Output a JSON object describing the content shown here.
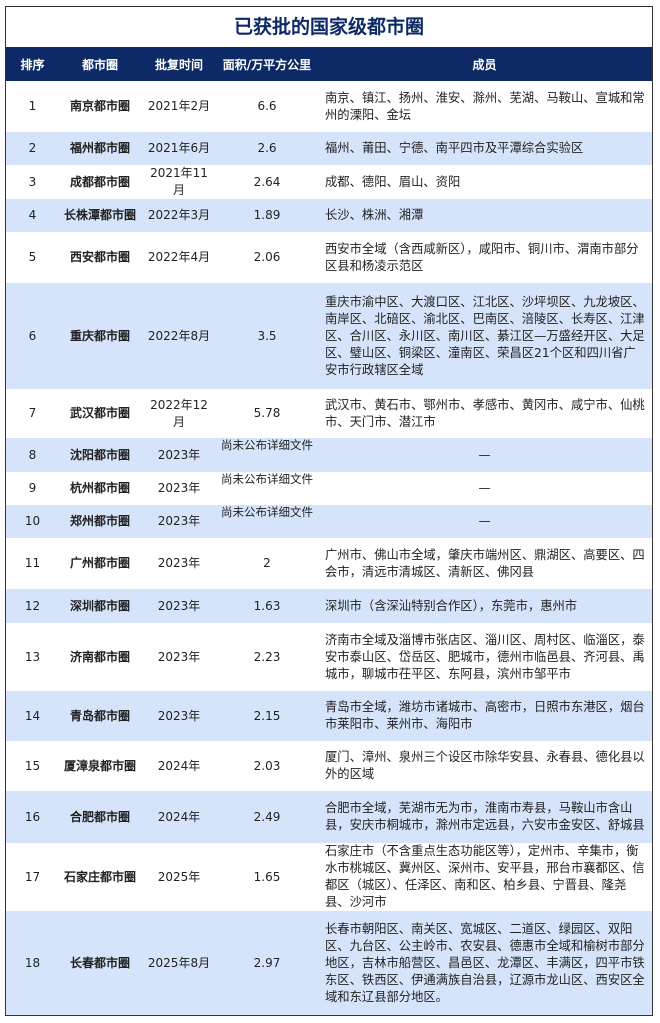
{
  "title": "已获批的国家级都市圈",
  "colors": {
    "header_bg": "#0d2a66",
    "alt_row_bg": "#d6e4fb",
    "title_color": "#0d2a66"
  },
  "headers": [
    "排序",
    "都市圈",
    "批复时间",
    "面积/万平方公里",
    "成员"
  ],
  "rows": [
    {
      "rank": "1",
      "name": "南京都市圈",
      "date": "2021年2月",
      "area": "6.6",
      "members": "南京、镇江、扬州、淮安、滁州、芜湖、马鞍山、宣城和常州的溧阳、金坛"
    },
    {
      "rank": "2",
      "name": "福州都市圈",
      "date": "2021年6月",
      "area": "2.6",
      "members": "福州、莆田、宁德、南平四市及平潭综合实验区"
    },
    {
      "rank": "3",
      "name": "成都都市圈",
      "date": "2021年11月",
      "area": "2.64",
      "members": "成都、德阳、眉山、资阳"
    },
    {
      "rank": "4",
      "name": "长株潭都市圈",
      "date": "2022年3月",
      "area": "1.89",
      "members": "长沙、株洲、湘潭"
    },
    {
      "rank": "5",
      "name": "西安都市圈",
      "date": "2022年4月",
      "area": "2.06",
      "members": "西安市全域（含西咸新区），咸阳市、铜川市、渭南市部分区县和杨凌示范区"
    },
    {
      "rank": "6",
      "name": "重庆都市圈",
      "date": "2022年8月",
      "area": "3.5",
      "members": "重庆市渝中区、大渡口区、江北区、沙坪坝区、九龙坡区、南岸区、北碚区、渝北区、巴南区、涪陵区、长寿区、江津区、合川区、永川区、南川区、綦江区—万盛经开区、大足区、璧山区、铜梁区、潼南区、荣昌区21个区和四川省广安市行政辖区全域"
    },
    {
      "rank": "7",
      "name": "武汉都市圈",
      "date": "2022年12月",
      "area": "5.78",
      "members": "武汉市、黄石市、鄂州市、孝感市、黄冈市、咸宁市、仙桃市、天门市、潜江市"
    },
    {
      "rank": "8",
      "name": "沈阳都市圈",
      "date": "2023年",
      "area": "尚未公布详细文件",
      "members": "—"
    },
    {
      "rank": "9",
      "name": "杭州都市圈",
      "date": "2023年",
      "area": "尚未公布详细文件",
      "members": "—"
    },
    {
      "rank": "10",
      "name": "郑州都市圈",
      "date": "2023年",
      "area": "尚未公布详细文件",
      "members": "—"
    },
    {
      "rank": "11",
      "name": "广州都市圈",
      "date": "2023年",
      "area": "2",
      "members": "广州市、佛山市全域，肇庆市端州区、鼎湖区、高要区、四会市，清远市清城区、清新区、佛冈县"
    },
    {
      "rank": "12",
      "name": "深圳都市圈",
      "date": "2023年",
      "area": "1.63",
      "members": "深圳市（含深汕特别合作区），东莞市，惠州市"
    },
    {
      "rank": "13",
      "name": "济南都市圈",
      "date": "2023年",
      "area": "2.23",
      "members": "济南市全域及淄博市张店区、淄川区、周村区、临淄区，泰安市泰山区、岱岳区、肥城市，德州市临邑县、齐河县、禹城市，聊城市茌平区、东阿县，滨州市邹平市"
    },
    {
      "rank": "14",
      "name": "青岛都市圈",
      "date": "2023年",
      "area": "2.15",
      "members": "青岛市全域，潍坊市诸城市、高密市，日照市东港区，烟台市莱阳市、莱州市、海阳市"
    },
    {
      "rank": "15",
      "name": "厦漳泉都市圈",
      "date": "2024年",
      "area": "2.03",
      "members": "厦门、漳州、泉州三个设区市除华安县、永春县、德化县以外的区域"
    },
    {
      "rank": "16",
      "name": "合肥都市圈",
      "date": "2024年",
      "area": "2.49",
      "members": "合肥市全域，芜湖市无为市，淮南市寿县，马鞍山市含山县，安庆市桐城市，滁州市定远县，六安市金安区、舒城县"
    },
    {
      "rank": "17",
      "name": "石家庄都市圈",
      "date": "2025年",
      "area": "1.65",
      "members": "石家庄市（不含重点生态功能区等），定州市、辛集市，衡水市桃城区、冀州区、深州市、安平县，邢台市襄都区、信都区（城区）、任泽区、南和区、柏乡县、宁晋县、隆尧县、沙河市"
    },
    {
      "rank": "18",
      "name": "长春都市圈",
      "date": "2025年8月",
      "area": "2.97",
      "members": "长春市朝阳区、南关区、宽城区、二道区、绿园区、双阳区、九台区、公主岭市、农安县、德惠市全域和榆树市部分地区，吉林市船营区、昌邑区、龙潭区、丰满区，四平市铁东区、铁西区、伊通满族自治县，辽源市龙山区、西安区全域和东辽县部分地区。"
    }
  ]
}
